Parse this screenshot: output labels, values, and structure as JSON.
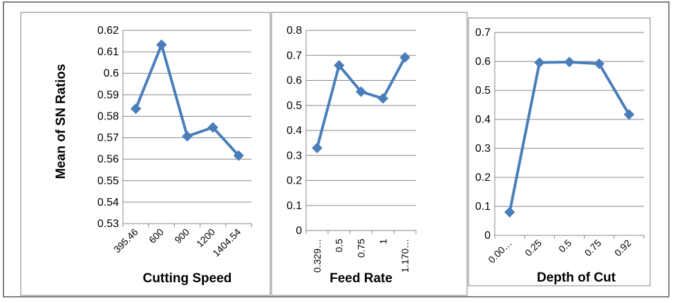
{
  "figure": {
    "ylabel": "Mean of SN Ratios",
    "colors": {
      "line": "#4a7ebb",
      "grid": "#868686",
      "axis": "#868686",
      "frame": "#7f7f7f",
      "text": "#000000"
    }
  },
  "chart_data": [
    {
      "type": "line",
      "categories": [
        "395.46",
        "600",
        "900",
        "1200",
        "1404.54"
      ],
      "values": [
        0.5835,
        0.6133,
        0.5707,
        0.5748,
        0.5617
      ],
      "xlabel": "Cutting Speed",
      "ylim": [
        0.53,
        0.62
      ],
      "yticks": [
        "0.53",
        "0.54",
        "0.55",
        "0.56",
        "0.57",
        "0.58",
        "0.59",
        "0.6",
        "0.61",
        "0.62"
      ],
      "grid": true,
      "marker": "diamond"
    },
    {
      "type": "line",
      "categories": [
        "0.329…",
        "0.5",
        "0.75",
        "1",
        "1.170…"
      ],
      "values": [
        0.33,
        0.66,
        0.555,
        0.528,
        0.692
      ],
      "xlabel": "Feed Rate",
      "ylim": [
        0,
        0.8
      ],
      "yticks": [
        "0",
        "0.1",
        "0.2",
        "0.3",
        "0.4",
        "0.5",
        "0.6",
        "0.7",
        "0.8"
      ],
      "grid": true,
      "marker": "diamond"
    },
    {
      "type": "line",
      "categories": [
        "0.00…",
        "0.25",
        "0.5",
        "0.75",
        "0.92"
      ],
      "values": [
        0.08,
        0.596,
        0.598,
        0.592,
        0.417
      ],
      "xlabel": "Depth of Cut",
      "ylim": [
        0,
        0.7
      ],
      "yticks": [
        "0",
        "0.1",
        "0.2",
        "0.3",
        "0.4",
        "0.5",
        "0.6",
        "0.7"
      ],
      "grid": true,
      "marker": "diamond"
    }
  ]
}
